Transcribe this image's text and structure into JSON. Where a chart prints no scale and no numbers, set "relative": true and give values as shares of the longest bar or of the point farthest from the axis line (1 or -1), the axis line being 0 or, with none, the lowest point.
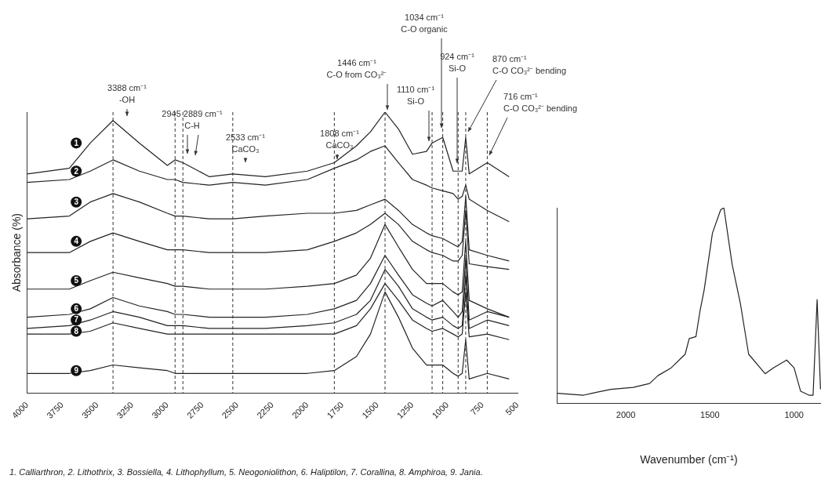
{
  "chart_data": [
    {
      "type": "line",
      "ylabel": "Absorbance (%)",
      "relative": true,
      "legend": false,
      "marker": "none",
      "x": [
        4000,
        3700,
        3550,
        3388,
        3200,
        3000,
        2945,
        2889,
        2700,
        2533,
        2300,
        2000,
        1808,
        1650,
        1550,
        1446,
        1350,
        1250,
        1150,
        1110,
        1034,
        960,
        924,
        895,
        870,
        845,
        716,
        560
      ],
      "xlim": [
        4000,
        500
      ],
      "xticks": [
        4000,
        3750,
        3500,
        3250,
        3000,
        2750,
        2500,
        2250,
        2000,
        1750,
        1500,
        1250,
        1000,
        750,
        500
      ],
      "series": [
        {
          "name": "1",
          "color": "#222222",
          "values": [
            0.78,
            0.8,
            0.89,
            0.97,
            0.89,
            0.81,
            0.83,
            0.82,
            0.77,
            0.78,
            0.77,
            0.79,
            0.82,
            0.88,
            0.93,
            1,
            0.94,
            0.85,
            0.86,
            0.89,
            0.91,
            0.79,
            0.79,
            0.79,
            0.91,
            0.78,
            0.82,
            0.77
          ]
        },
        {
          "name": "2",
          "color": "#222222",
          "values": [
            0.75,
            0.76,
            0.79,
            0.83,
            0.79,
            0.76,
            0.76,
            0.75,
            0.74,
            0.75,
            0.74,
            0.76,
            0.8,
            0.83,
            0.86,
            0.88,
            0.82,
            0.76,
            0.74,
            0.73,
            0.72,
            0.71,
            0.69,
            0.7,
            0.74,
            0.69,
            0.65,
            0.61
          ]
        },
        {
          "name": "3",
          "color": "#222222",
          "values": [
            0.62,
            0.63,
            0.68,
            0.71,
            0.68,
            0.64,
            0.63,
            0.63,
            0.62,
            0.62,
            0.63,
            0.64,
            0.64,
            0.65,
            0.67,
            0.69,
            0.65,
            0.6,
            0.57,
            0.56,
            0.55,
            0.53,
            0.52,
            0.54,
            0.7,
            0.51,
            0.49,
            0.47
          ]
        },
        {
          "name": "4",
          "color": "#222222",
          "values": [
            0.5,
            0.5,
            0.54,
            0.57,
            0.54,
            0.51,
            0.51,
            0.51,
            0.5,
            0.5,
            0.5,
            0.51,
            0.54,
            0.57,
            0.6,
            0.64,
            0.6,
            0.54,
            0.51,
            0.5,
            0.49,
            0.47,
            0.47,
            0.49,
            0.65,
            0.46,
            0.45,
            0.44
          ]
        },
        {
          "name": "5",
          "color": "#222222",
          "values": [
            0.37,
            0.37,
            0.4,
            0.43,
            0.41,
            0.39,
            0.38,
            0.38,
            0.37,
            0.37,
            0.37,
            0.38,
            0.39,
            0.42,
            0.48,
            0.6,
            0.52,
            0.44,
            0.39,
            0.39,
            0.39,
            0.36,
            0.35,
            0.36,
            0.54,
            0.33,
            0.3,
            0.27
          ]
        },
        {
          "name": "6",
          "color": "#222222",
          "values": [
            0.27,
            0.28,
            0.3,
            0.34,
            0.31,
            0.29,
            0.28,
            0.28,
            0.27,
            0.27,
            0.27,
            0.28,
            0.3,
            0.33,
            0.39,
            0.49,
            0.42,
            0.35,
            0.32,
            0.31,
            0.33,
            0.29,
            0.27,
            0.29,
            0.48,
            0.26,
            0.29,
            0.27
          ]
        },
        {
          "name": "7",
          "color": "#222222",
          "values": [
            0.23,
            0.24,
            0.26,
            0.29,
            0.27,
            0.24,
            0.24,
            0.24,
            0.23,
            0.23,
            0.23,
            0.24,
            0.25,
            0.28,
            0.33,
            0.44,
            0.38,
            0.3,
            0.27,
            0.26,
            0.27,
            0.24,
            0.23,
            0.24,
            0.42,
            0.23,
            0.26,
            0.24
          ]
        },
        {
          "name": "8",
          "color": "#222222",
          "values": [
            0.21,
            0.21,
            0.22,
            0.25,
            0.23,
            0.21,
            0.21,
            0.21,
            0.21,
            0.21,
            0.21,
            0.21,
            0.21,
            0.24,
            0.3,
            0.39,
            0.33,
            0.26,
            0.23,
            0.22,
            0.23,
            0.21,
            0.2,
            0.21,
            0.36,
            0.2,
            0.21,
            0.19
          ]
        },
        {
          "name": "9",
          "color": "#222222",
          "values": [
            0.07,
            0.07,
            0.08,
            0.1,
            0.09,
            0.08,
            0.07,
            0.07,
            0.07,
            0.07,
            0.07,
            0.07,
            0.08,
            0.13,
            0.21,
            0.36,
            0.27,
            0.16,
            0.1,
            0.1,
            0.1,
            0.07,
            0.06,
            0.07,
            0.19,
            0.05,
            0.07,
            0.05
          ]
        }
      ],
      "ref_lines": [
        {
          "axis": "x",
          "value": 3388,
          "label": "3388 cm⁻¹\n-OH",
          "line_style": "dashed"
        },
        {
          "axis": "x",
          "value": 2945,
          "label": "2945 2889 cm⁻¹\nC-H",
          "line_style": "dashed"
        },
        {
          "axis": "x",
          "value": 2889,
          "label": null,
          "line_style": "dashed"
        },
        {
          "axis": "x",
          "value": 2533,
          "label": "2533 cm⁻¹\nCaCO₃",
          "line_style": "dashed"
        },
        {
          "axis": "x",
          "value": 1808,
          "label": "1808 cm⁻¹\nCaCO₃",
          "line_style": "dashed"
        },
        {
          "axis": "x",
          "value": 1446,
          "label": "1446 cm⁻¹\nC-O from CO₃²⁻",
          "line_style": "dashed"
        },
        {
          "axis": "x",
          "value": 1110,
          "label": "1110 cm⁻¹\nSi-O",
          "line_style": "dashed"
        },
        {
          "axis": "x",
          "value": 1034,
          "label": "1034 cm⁻¹\nC-O organic",
          "line_style": "dashed"
        },
        {
          "axis": "x",
          "value": 924,
          "label": "924 cm⁻¹\nSi-O",
          "line_style": "dashed"
        },
        {
          "axis": "x",
          "value": 870,
          "label": "870 cm⁻¹\nC-O CO₃²⁻ bending",
          "line_style": "dashed"
        },
        {
          "axis": "x",
          "value": 716,
          "label": "716 cm⁻¹\nC-O CO₃²⁻ bending",
          "line_style": "dashed"
        }
      ],
      "annotations": [
        "1. Calliarthron, 2. Lithothrix, 3. Bossiella, 4. Lithophyllum, 5. Neogoniolithon, 6. Haliptilon, 7. Corallina, 8. Amphiroa, 9. Jania."
      ]
    },
    {
      "type": "line",
      "xlabel": "Wavenumber (cm⁻¹)",
      "relative": true,
      "legend": false,
      "marker": "none",
      "color": "#222222",
      "x": [
        2407,
        2250,
        2200,
        2088,
        1956,
        1858,
        1809,
        1730,
        1647,
        1623,
        1583,
        1559,
        1534,
        1485,
        1436,
        1417,
        1368,
        1319,
        1270,
        1172,
        1123,
        1044,
        1000,
        961,
        912,
        887,
        863,
        843
      ],
      "values": [
        0.05,
        0.04,
        0.05,
        0.07,
        0.08,
        0.1,
        0.14,
        0.18,
        0.25,
        0.33,
        0.34,
        0.47,
        0.58,
        0.87,
        0.99,
        1,
        0.71,
        0.51,
        0.25,
        0.15,
        0.18,
        0.22,
        0.18,
        0.06,
        0.04,
        0.04,
        0.53,
        0.07
      ],
      "xlim": [
        2410,
        840
      ],
      "xticks": [
        2000,
        1500,
        1000
      ]
    }
  ]
}
